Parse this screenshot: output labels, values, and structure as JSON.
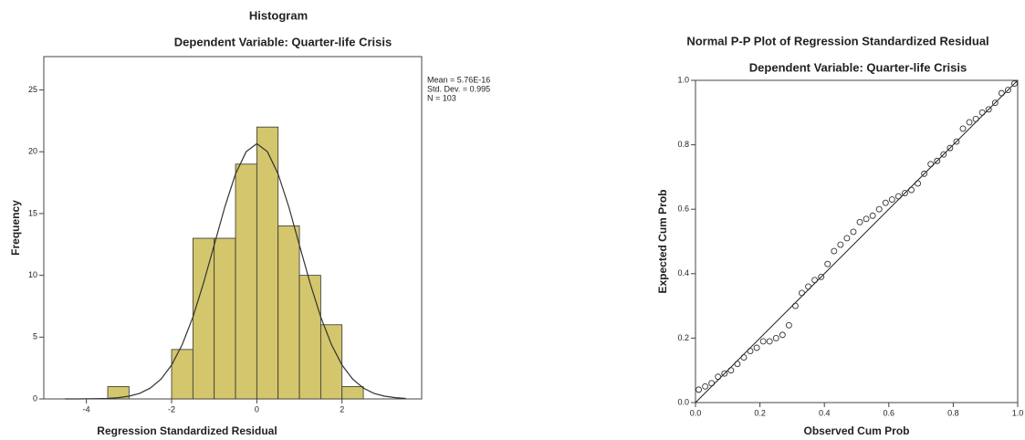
{
  "chart_data": [
    {
      "type": "histogram",
      "title": "Histogram",
      "subtitle": "Dependent Variable: Quarter-life Crisis",
      "xlabel": "Regression Standardized Residual",
      "ylabel": "Frequency",
      "bins": [
        -3.5,
        -3,
        -2.5,
        -2,
        -1.5,
        -1,
        -0.5,
        0,
        0.5,
        1,
        1.5,
        2,
        2.5
      ],
      "values": [
        1,
        0,
        0,
        4,
        13,
        13,
        19,
        22,
        14,
        10,
        6,
        1
      ],
      "color": "#d3c66c",
      "annotations": [
        "Mean = 5.76E-16",
        "Std. Dev. = 0.995",
        "N = 103"
      ],
      "curve": {
        "x": [
          -4.5,
          -4.25,
          -4,
          -3.75,
          -3.5,
          -3.25,
          -3,
          -2.75,
          -2.5,
          -2.25,
          -2,
          -1.75,
          -1.5,
          -1.25,
          -1,
          -0.75,
          -0.5,
          -0.25,
          0,
          0.25,
          0.5,
          0.75,
          1,
          1.25,
          1.5,
          1.75,
          2,
          2.25,
          2.5,
          2.75,
          3,
          3.25,
          3.5
        ],
        "values": [
          0,
          0,
          0.01,
          0.02,
          0.04,
          0.1,
          0.22,
          0.45,
          0.88,
          1.6,
          2.74,
          4.4,
          6.63,
          9.38,
          12.46,
          15.55,
          18.2,
          20.0,
          20.65,
          20.0,
          18.2,
          15.55,
          12.46,
          9.38,
          6.63,
          4.4,
          2.74,
          1.6,
          0.88,
          0.45,
          0.22,
          0.1,
          0.04
        ]
      },
      "xlim": [
        -5,
        3.87
      ],
      "ylim": [
        0,
        27.7
      ],
      "xticks": [
        -4,
        -2,
        0,
        2
      ],
      "yticks": [
        0,
        5,
        10,
        15,
        20,
        25
      ]
    },
    {
      "type": "scatter",
      "title": "Normal P-P Plot of Regression Standardized Residual",
      "subtitle": "Dependent Variable: Quarter-life Crisis",
      "xlabel": "Observed Cum Prob",
      "ylabel": "Expected Cum Prob",
      "x": [
        0.01,
        0.03,
        0.05,
        0.07,
        0.09,
        0.11,
        0.13,
        0.15,
        0.17,
        0.19,
        0.21,
        0.23,
        0.25,
        0.27,
        0.29,
        0.31,
        0.33,
        0.35,
        0.37,
        0.39,
        0.41,
        0.43,
        0.45,
        0.47,
        0.49,
        0.51,
        0.53,
        0.55,
        0.57,
        0.59,
        0.61,
        0.63,
        0.65,
        0.67,
        0.69,
        0.71,
        0.73,
        0.75,
        0.77,
        0.79,
        0.81,
        0.83,
        0.85,
        0.87,
        0.89,
        0.91,
        0.93,
        0.95,
        0.97,
        0.99
      ],
      "values": [
        0.04,
        0.05,
        0.06,
        0.08,
        0.09,
        0.1,
        0.12,
        0.14,
        0.16,
        0.17,
        0.19,
        0.19,
        0.2,
        0.21,
        0.24,
        0.3,
        0.34,
        0.36,
        0.38,
        0.39,
        0.43,
        0.47,
        0.49,
        0.51,
        0.53,
        0.56,
        0.57,
        0.58,
        0.6,
        0.62,
        0.63,
        0.64,
        0.65,
        0.66,
        0.68,
        0.71,
        0.74,
        0.75,
        0.77,
        0.79,
        0.81,
        0.85,
        0.87,
        0.88,
        0.9,
        0.91,
        0.93,
        0.96,
        0.97,
        0.99
      ],
      "xlim": [
        0,
        1
      ],
      "ylim": [
        0,
        1
      ],
      "xticks": [
        {
          "value": 0,
          "label": "0.0"
        },
        0.2,
        0.4,
        0.6,
        0.8,
        {
          "value": 1,
          "label": "1.0"
        }
      ],
      "yticks": [
        {
          "value": 0,
          "label": "0.0"
        },
        0.2,
        0.4,
        0.6,
        0.8,
        {
          "value": 1,
          "label": "1.0"
        }
      ]
    }
  ]
}
